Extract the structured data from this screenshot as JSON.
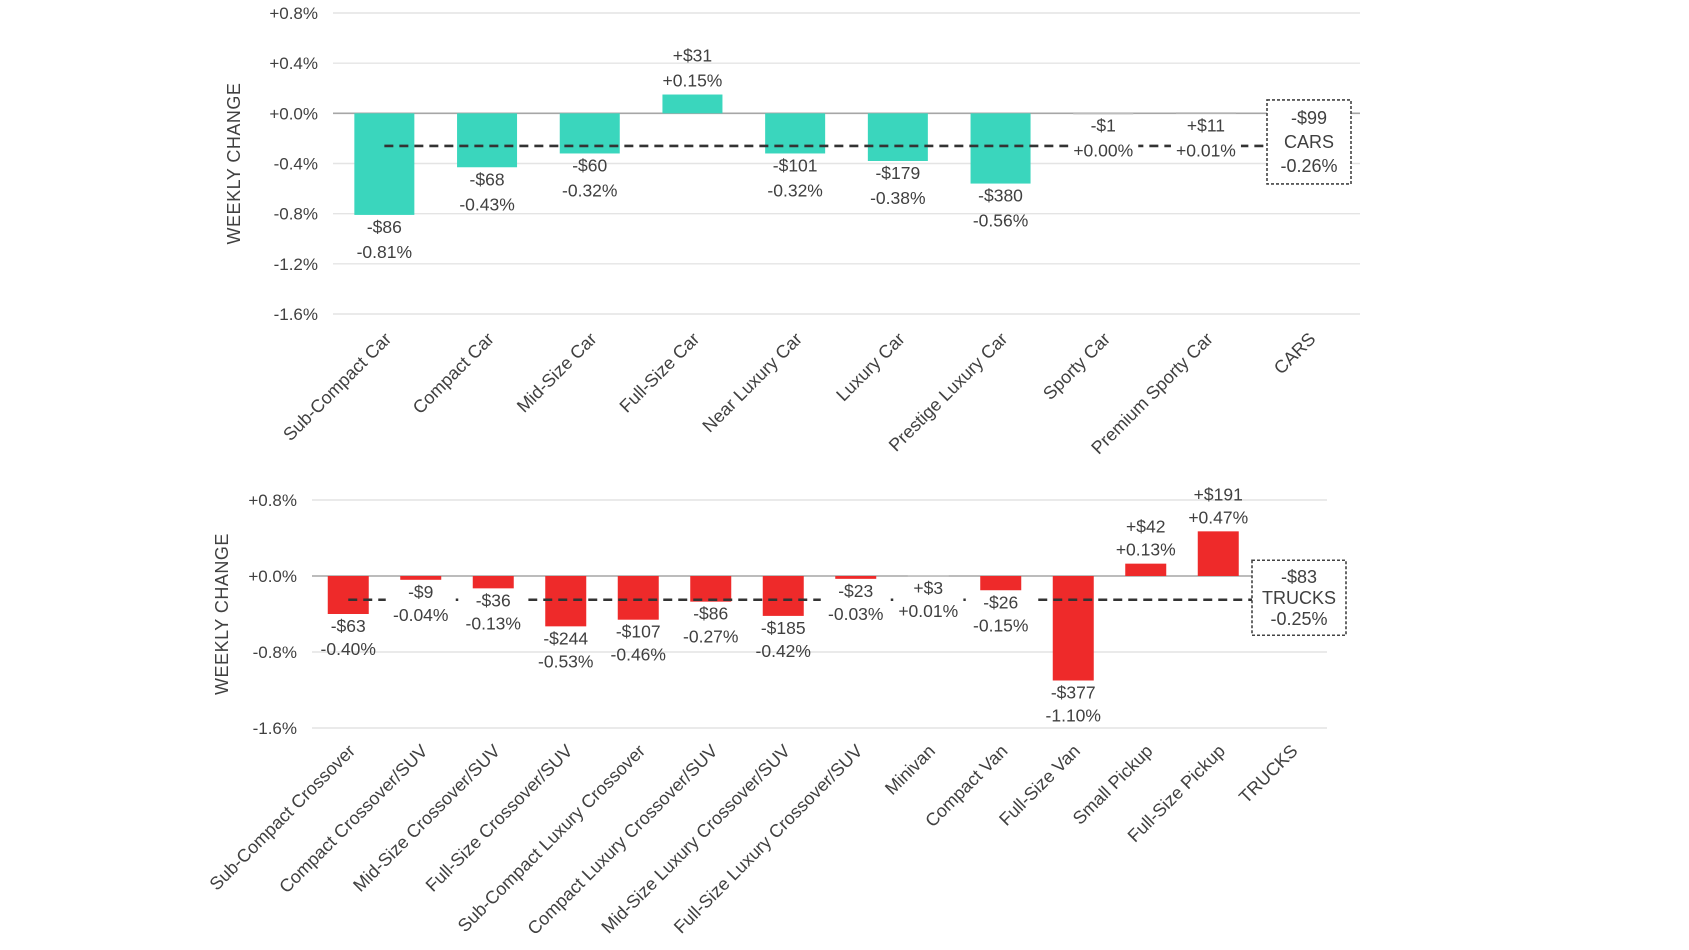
{
  "chart_data": [
    {
      "type": "bar",
      "title": "",
      "xlabel": "",
      "ylabel": "WEEKLY CHANGE",
      "ylim": [
        -1.6,
        0.8
      ],
      "yticks": [
        0.8,
        0.4,
        0.0,
        -0.4,
        -0.8,
        -1.2,
        -1.6
      ],
      "ytick_labels": [
        "+0.8%",
        "+0.4%",
        "+0.0%",
        "-0.4%",
        "-0.8%",
        "-1.2%",
        "-1.6%"
      ],
      "grid": true,
      "bar_color": "#3ad6bd",
      "categories": [
        "Sub-Compact Car",
        "Compact Car",
        "Mid-Size Car",
        "Full-Size Car",
        "Near Luxury Car",
        "Luxury Car",
        "Prestige Luxury Car",
        "Sporty Car",
        "Premium Sporty Car",
        "CARS"
      ],
      "values": [
        -0.81,
        -0.43,
        -0.32,
        0.15,
        -0.32,
        -0.38,
        -0.56,
        0.0,
        0.01,
        null
      ],
      "dollar_labels": [
        "-$86",
        "-$68",
        "-$60",
        "+$31",
        "-$101",
        "-$179",
        "-$380",
        "-$1",
        "+$11",
        null
      ],
      "pct_labels": [
        "-0.81%",
        "-0.43%",
        "-0.32%",
        "+0.15%",
        "-0.32%",
        "-0.38%",
        "-0.56%",
        "+0.00%",
        "+0.01%",
        null
      ],
      "average": {
        "value": -0.26,
        "dollar": "-$99",
        "name": "CARS",
        "pct": "-0.26%"
      }
    },
    {
      "type": "bar",
      "title": "",
      "xlabel": "",
      "ylabel": "WEEKLY CHANGE",
      "ylim": [
        -1.6,
        0.8
      ],
      "yticks": [
        0.8,
        0.0,
        -0.8,
        -1.6
      ],
      "ytick_labels": [
        "+0.8%",
        "+0.0%",
        "-0.8%",
        "-1.6%"
      ],
      "grid": true,
      "bar_color": "#ee2a2a",
      "categories": [
        "Sub-Compact Crossover",
        "Compact Crossover/SUV",
        "Mid-Size Crossover/SUV",
        "Full-Size Crossover/SUV",
        "Sub-Compact Luxury Crossover",
        "Compact Luxury Crossover/SUV",
        "Mid-Size Luxury Crossover/SUV",
        "Full-Size Luxury Crossover/SUV",
        "Minivan",
        "Compact Van",
        "Full-Size Van",
        "Small Pickup",
        "Full-Size Pickup",
        "TRUCKS"
      ],
      "values": [
        -0.4,
        -0.04,
        -0.13,
        -0.53,
        -0.46,
        -0.27,
        -0.42,
        -0.03,
        0.01,
        -0.15,
        -1.1,
        0.13,
        0.47,
        null
      ],
      "dollar_labels": [
        "-$63",
        "-$9",
        "-$36",
        "-$244",
        "-$107",
        "-$86",
        "-$185",
        "-$23",
        "+$3",
        "-$26",
        "-$377",
        "+$42",
        "+$191",
        null
      ],
      "pct_labels": [
        "-0.40%",
        "-0.04%",
        "-0.13%",
        "-0.53%",
        "-0.46%",
        "-0.27%",
        "-0.42%",
        "-0.03%",
        "+0.01%",
        "-0.15%",
        "-1.10%",
        "+0.13%",
        "+0.47%",
        null
      ],
      "average": {
        "value": -0.25,
        "dollar": "-$83",
        "name": "TRUCKS",
        "pct": "-0.25%"
      }
    }
  ]
}
